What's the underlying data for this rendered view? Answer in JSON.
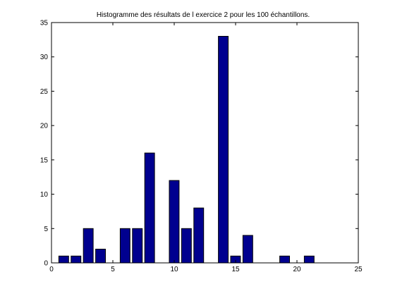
{
  "chart_data": {
    "type": "bar",
    "title": "Histogramme des résultats de l exercice 2 pour les 100 échantillons.",
    "xlabel": "",
    "ylabel": "",
    "xlim": [
      0,
      25
    ],
    "ylim": [
      0,
      35
    ],
    "bar_width": 0.8,
    "x_ticks": [
      0,
      5,
      10,
      15,
      20,
      25
    ],
    "y_ticks": [
      0,
      5,
      10,
      15,
      20,
      25,
      30,
      35
    ],
    "x": [
      1,
      2,
      3,
      4,
      5,
      6,
      7,
      8,
      9,
      10,
      11,
      12,
      13,
      14,
      15,
      16,
      17,
      18,
      19,
      20,
      21,
      22
    ],
    "values": [
      1,
      1,
      5,
      2,
      0,
      5,
      5,
      16,
      0,
      12,
      5,
      8,
      0,
      33,
      1,
      4,
      0,
      0,
      1,
      0,
      1,
      0
    ],
    "colors": {
      "bar_fill": "#00008f",
      "bar_edge": "#000000"
    },
    "grid": false,
    "legend": "none"
  }
}
